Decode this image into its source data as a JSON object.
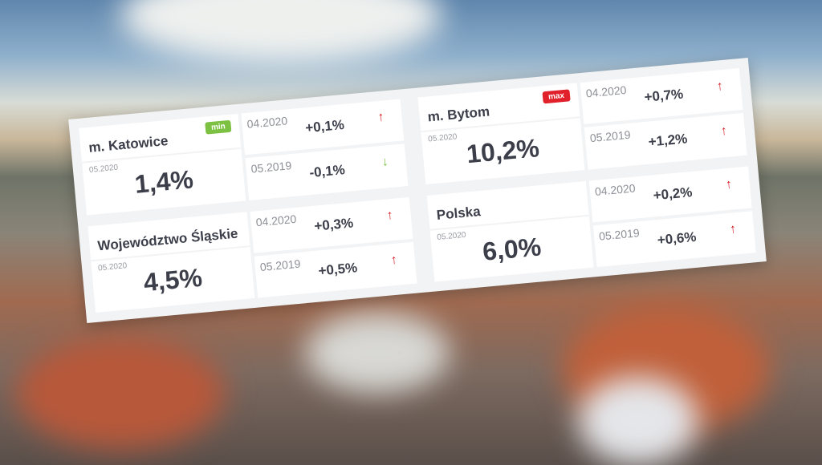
{
  "colors": {
    "min_badge": "#7cc142",
    "max_badge": "#e0202a",
    "up": "#d8202a",
    "down": "#7cc142"
  },
  "cards": [
    {
      "title": "m. Katowice",
      "badge": "min",
      "date": "05.2020",
      "value": "1,4%",
      "rows": [
        {
          "date": "04.2020",
          "value": "+0,1%",
          "trend": "up-arrow-icon",
          "glyph": "↑"
        },
        {
          "date": "05.2019",
          "value": "-0,1%",
          "trend": "down-arrow-icon",
          "glyph": "↓"
        }
      ]
    },
    {
      "title": "m. Bytom",
      "badge": "max",
      "date": "05.2020",
      "value": "10,2%",
      "rows": [
        {
          "date": "04.2020",
          "value": "+0,7%",
          "trend": "up-arrow-icon",
          "glyph": "↑"
        },
        {
          "date": "05.2019",
          "value": "+1,2%",
          "trend": "up-arrow-icon",
          "glyph": "↑"
        }
      ]
    },
    {
      "title": "Województwo Śląskie",
      "date": "05.2020",
      "value": "4,5%",
      "rows": [
        {
          "date": "04.2020",
          "value": "+0,3%",
          "trend": "up-arrow-icon",
          "glyph": "↑"
        },
        {
          "date": "05.2019",
          "value": "+0,5%",
          "trend": "up-arrow-icon",
          "glyph": "↑"
        }
      ]
    },
    {
      "title": "Polska",
      "date": "05.2020",
      "value": "6,0%",
      "rows": [
        {
          "date": "04.2020",
          "value": "+0,2%",
          "trend": "up-arrow-icon",
          "glyph": "↑"
        },
        {
          "date": "05.2019",
          "value": "+0,6%",
          "trend": "up-arrow-icon",
          "glyph": "↑"
        }
      ]
    }
  ]
}
